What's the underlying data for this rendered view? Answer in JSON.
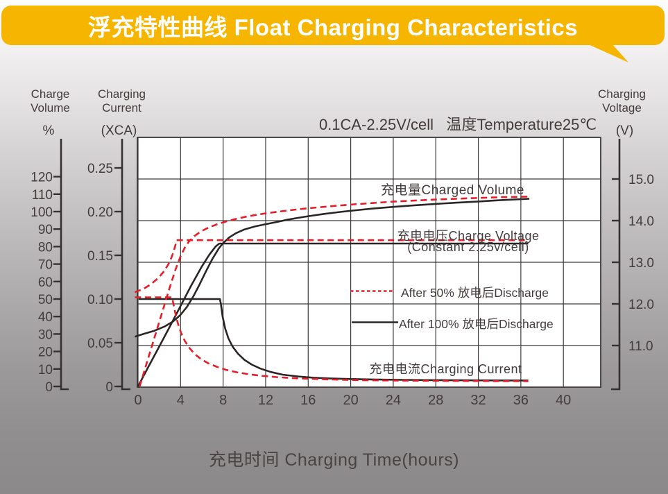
{
  "header": {
    "title": "浮充特性曲线 Float Charging Characteristics"
  },
  "colors": {
    "accent_yellow": "#F5B501",
    "series_red": "#E61C29",
    "series_black": "#2A2626",
    "grid": "#3d3939",
    "text": "#443c3c",
    "plot_bg": "#ffffff"
  },
  "chart_data": {
    "type": "line",
    "title": "0.1CA-2.25V/cell   温度Temperature25℃",
    "x_axis": {
      "label": "充电时间 Charging Time(hours)",
      "ticks": [
        0,
        4,
        8,
        12,
        16,
        20,
        24,
        28,
        32,
        36,
        40
      ],
      "range": [
        0,
        43.5
      ],
      "grid": true
    },
    "axis_titles": {
      "percent": {
        "line1": "Charge",
        "line2": "Volume",
        "unit": "%"
      },
      "current": {
        "line1": "Charging",
        "line2": "Current",
        "unit": "(XCA)"
      },
      "voltage": {
        "line1": "Charging",
        "line2": "Voltage",
        "unit": "(V)"
      }
    },
    "axes": {
      "percent": {
        "ticks": [
          120,
          110,
          100,
          90,
          80,
          70,
          60,
          50,
          40,
          30,
          20,
          10,
          0
        ],
        "range": [
          0,
          141
        ]
      },
      "current": {
        "ticks": [
          "0.25",
          "0.20",
          "0.15",
          "0.10",
          "0.05",
          "0"
        ],
        "range": [
          0,
          0.283
        ]
      },
      "voltage": {
        "ticks": [
          "15.0",
          "14.0",
          "13.0",
          "12.0",
          "11.0"
        ],
        "range": [
          10,
          16
        ],
        "gridline_values": [
          15,
          14,
          13,
          12,
          11
        ]
      }
    },
    "annotations": {
      "charged_volume": "充电量Charged Volume",
      "charge_voltage_line1": "充电电压Charge Voltage",
      "charge_voltage_line2": "(Constant 2.25v/cell)",
      "charging_current": "充电电流Charging Current"
    },
    "legend": [
      {
        "label": "After 50% 放电后Discharge",
        "style": "dashed",
        "color": "#E61C29"
      },
      {
        "label": "After 100% 放电后Discharge",
        "style": "solid",
        "color": "#2A2626"
      }
    ],
    "series": [
      {
        "name": "charged_volume_100",
        "axis": "percent",
        "style": "solid",
        "points": [
          [
            -0.3,
            28.5
          ],
          [
            0.5,
            30
          ],
          [
            1.5,
            31.8
          ],
          [
            2.5,
            34.3
          ],
          [
            3.3,
            37.2
          ],
          [
            4,
            41
          ],
          [
            4.6,
            45.5
          ],
          [
            5.2,
            51.5
          ],
          [
            5.8,
            58.5
          ],
          [
            6.4,
            66
          ],
          [
            7,
            73
          ],
          [
            7.6,
            79
          ],
          [
            8,
            82
          ],
          [
            8.6,
            85.3
          ],
          [
            9.2,
            87.6
          ],
          [
            10,
            89.8
          ],
          [
            11,
            91.5
          ],
          [
            12,
            92.8
          ],
          [
            13,
            94
          ],
          [
            14,
            95.3
          ],
          [
            15,
            96.4
          ],
          [
            16,
            97.4
          ],
          [
            17.5,
            98.7
          ],
          [
            19,
            99.8
          ],
          [
            20.5,
            100.8
          ],
          [
            22,
            101.7
          ],
          [
            24,
            102.7
          ],
          [
            26,
            103.6
          ],
          [
            28,
            104.4
          ],
          [
            30,
            105.1
          ],
          [
            32,
            105.8
          ],
          [
            34,
            106.5
          ],
          [
            36,
            107.1
          ],
          [
            36.8,
            107.4
          ]
        ]
      },
      {
        "name": "charged_volume_50",
        "axis": "percent",
        "style": "dashed",
        "points": [
          [
            0.15,
            0
          ],
          [
            0.7,
            11
          ],
          [
            1.3,
            23
          ],
          [
            1.9,
            35
          ],
          [
            2.5,
            47
          ],
          [
            3,
            57
          ],
          [
            3.5,
            66.5
          ],
          [
            4,
            74.5
          ],
          [
            4.4,
            79.5
          ],
          [
            4.8,
            83
          ],
          [
            5.3,
            86
          ],
          [
            5.9,
            88.6
          ],
          [
            6.6,
            90.8
          ],
          [
            7.4,
            92.7
          ],
          [
            8.2,
            94.2
          ],
          [
            9,
            95.5
          ],
          [
            10,
            96.9
          ],
          [
            11,
            98
          ],
          [
            12,
            99
          ],
          [
            13.5,
            100.2
          ],
          [
            15,
            101.3
          ],
          [
            16.5,
            102.2
          ],
          [
            18,
            103
          ],
          [
            20,
            104
          ],
          [
            22,
            104.9
          ],
          [
            24,
            105.7
          ],
          [
            26,
            106.3
          ],
          [
            28,
            106.9
          ],
          [
            30,
            107.4
          ],
          [
            32,
            107.8
          ],
          [
            34,
            108.2
          ],
          [
            36,
            108.5
          ],
          [
            36.8,
            108.6
          ]
        ]
      },
      {
        "name": "charge_voltage_100",
        "axis": "voltage",
        "style": "solid",
        "points": [
          [
            0,
            10.02
          ],
          [
            1,
            10.5
          ],
          [
            2,
            10.98
          ],
          [
            3,
            11.46
          ],
          [
            4,
            11.95
          ],
          [
            5,
            12.44
          ],
          [
            6,
            12.9
          ],
          [
            6.7,
            13.18
          ],
          [
            7.3,
            13.38
          ],
          [
            7.65,
            13.45
          ],
          [
            36.7,
            13.45
          ]
        ]
      },
      {
        "name": "charge_voltage_50",
        "axis": "voltage",
        "style": "dashed",
        "points": [
          [
            -0.3,
            12.28
          ],
          [
            0.5,
            12.36
          ],
          [
            1.2,
            12.47
          ],
          [
            1.9,
            12.62
          ],
          [
            2.5,
            12.8
          ],
          [
            3,
            13.02
          ],
          [
            3.3,
            13.22
          ],
          [
            3.5,
            13.4
          ],
          [
            3.62,
            13.53
          ],
          [
            36.7,
            13.53
          ]
        ]
      },
      {
        "name": "charging_current_100",
        "axis": "current",
        "style": "solid",
        "points": [
          [
            0.05,
            0.1
          ],
          [
            7.7,
            0.1
          ],
          [
            7.78,
            0.095
          ],
          [
            7.95,
            0.08
          ],
          [
            8.2,
            0.066
          ],
          [
            8.5,
            0.055
          ],
          [
            8.9,
            0.0455
          ],
          [
            9.4,
            0.0375
          ],
          [
            10,
            0.0305
          ],
          [
            10.7,
            0.025
          ],
          [
            11.5,
            0.0205
          ],
          [
            12.5,
            0.0165
          ],
          [
            13.6,
            0.0135
          ],
          [
            15,
            0.0115
          ],
          [
            16.5,
            0.01
          ],
          [
            18,
            0.0092
          ],
          [
            20,
            0.0085
          ],
          [
            22,
            0.008
          ],
          [
            25,
            0.0075
          ],
          [
            28,
            0.0072
          ],
          [
            32,
            0.007
          ],
          [
            36.7,
            0.0068
          ]
        ]
      },
      {
        "name": "charging_current_50",
        "axis": "current",
        "style": "dashed",
        "points": [
          [
            -0.3,
            0.102
          ],
          [
            3.2,
            0.102
          ],
          [
            3.3,
            0.096
          ],
          [
            3.5,
            0.084
          ],
          [
            3.75,
            0.072
          ],
          [
            4.05,
            0.061
          ],
          [
            4.4,
            0.052
          ],
          [
            4.8,
            0.0445
          ],
          [
            5.3,
            0.0375
          ],
          [
            5.9,
            0.0315
          ],
          [
            6.6,
            0.0265
          ],
          [
            7.4,
            0.0225
          ],
          [
            8.3,
            0.019
          ],
          [
            9.3,
            0.0162
          ],
          [
            10.4,
            0.014
          ],
          [
            11.6,
            0.0122
          ],
          [
            13,
            0.0107
          ],
          [
            14.5,
            0.0096
          ],
          [
            16,
            0.0088
          ],
          [
            18,
            0.008
          ],
          [
            20,
            0.0074
          ],
          [
            23,
            0.0069
          ],
          [
            26,
            0.0066
          ],
          [
            30,
            0.0063
          ],
          [
            34,
            0.0061
          ],
          [
            36.7,
            0.006
          ]
        ]
      }
    ]
  }
}
